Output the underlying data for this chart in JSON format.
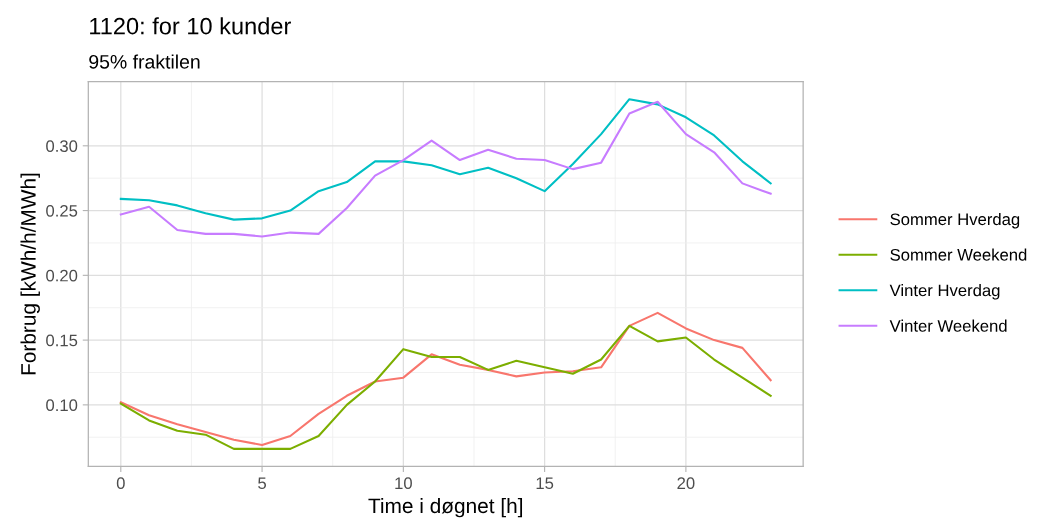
{
  "chart_data": {
    "type": "line",
    "title": "1120: for 10 kunder",
    "subtitle": "95% fraktilen",
    "xlabel": "Time i døgnet [h]",
    "ylabel": "Forbrug [kWh/h/MWh]",
    "x": [
      0,
      1,
      2,
      3,
      4,
      5,
      6,
      7,
      8,
      9,
      10,
      11,
      12,
      13,
      14,
      15,
      16,
      17,
      18,
      19,
      20,
      21,
      22,
      23
    ],
    "series": [
      {
        "name": "Sommer Hverdag",
        "color": "#f8766d",
        "values": [
          0.102,
          0.092,
          0.085,
          0.079,
          0.073,
          0.069,
          0.076,
          0.093,
          0.107,
          0.118,
          0.121,
          0.139,
          0.131,
          0.127,
          0.122,
          0.125,
          0.126,
          0.129,
          0.161,
          0.171,
          0.159,
          0.15,
          0.144,
          0.119
        ]
      },
      {
        "name": "Sommer Weekend",
        "color": "#7cae00",
        "values": [
          0.101,
          0.088,
          0.08,
          0.077,
          0.066,
          0.066,
          0.066,
          0.076,
          0.1,
          0.118,
          0.143,
          0.137,
          0.137,
          0.127,
          0.134,
          0.129,
          0.124,
          0.135,
          0.161,
          0.149,
          0.152,
          0.135,
          0.121,
          0.107
        ]
      },
      {
        "name": "Vinter Hverdag",
        "color": "#00bfc4",
        "values": [
          0.259,
          0.258,
          0.254,
          0.248,
          0.243,
          0.244,
          0.25,
          0.265,
          0.272,
          0.288,
          0.288,
          0.285,
          0.278,
          0.283,
          0.275,
          0.265,
          0.286,
          0.309,
          0.336,
          0.332,
          0.322,
          0.308,
          0.288,
          0.271
        ]
      },
      {
        "name": "Vinter Weekend",
        "color": "#c77cff",
        "values": [
          0.247,
          0.253,
          0.235,
          0.232,
          0.232,
          0.23,
          0.233,
          0.232,
          0.252,
          0.277,
          0.289,
          0.304,
          0.289,
          0.297,
          0.29,
          0.289,
          0.282,
          0.287,
          0.325,
          0.334,
          0.309,
          0.295,
          0.271,
          0.263
        ]
      }
    ],
    "xlim": [
      -1.15,
      24.15
    ],
    "ylim": [
      0.0525,
      0.3495
    ],
    "xticks": [
      0,
      5,
      10,
      15,
      20
    ],
    "yticks": [
      {
        "value": 0.1,
        "label": "0.10"
      },
      {
        "value": 0.15,
        "label": "0.15"
      },
      {
        "value": 0.2,
        "label": "0.20"
      },
      {
        "value": 0.25,
        "label": "0.25"
      },
      {
        "value": 0.3,
        "label": "0.30"
      }
    ],
    "grid": true,
    "legend": "right",
    "marker": "none",
    "line_style": "solid"
  }
}
